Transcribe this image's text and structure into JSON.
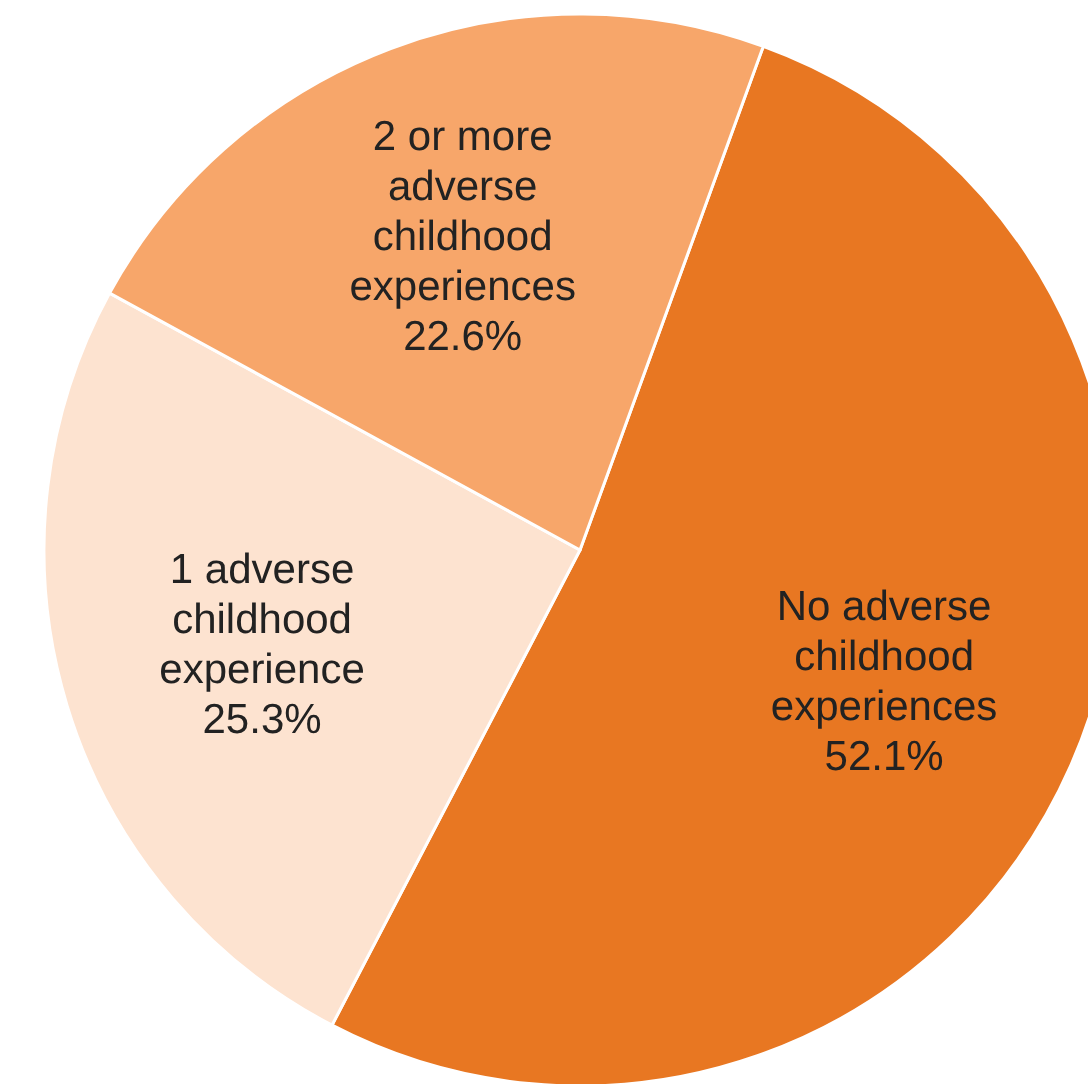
{
  "chart_data": {
    "type": "pie",
    "categories": [
      "No adverse childhood experiences",
      "1 adverse childhood experience",
      "2 or more adverse childhood experiences"
    ],
    "values": [
      52.1,
      25.3,
      22.6
    ],
    "value_labels": [
      "52.1%",
      "25.3%",
      "22.6%"
    ],
    "colors": [
      "#e87722",
      "#fde3d0",
      "#f7a66a"
    ]
  }
}
